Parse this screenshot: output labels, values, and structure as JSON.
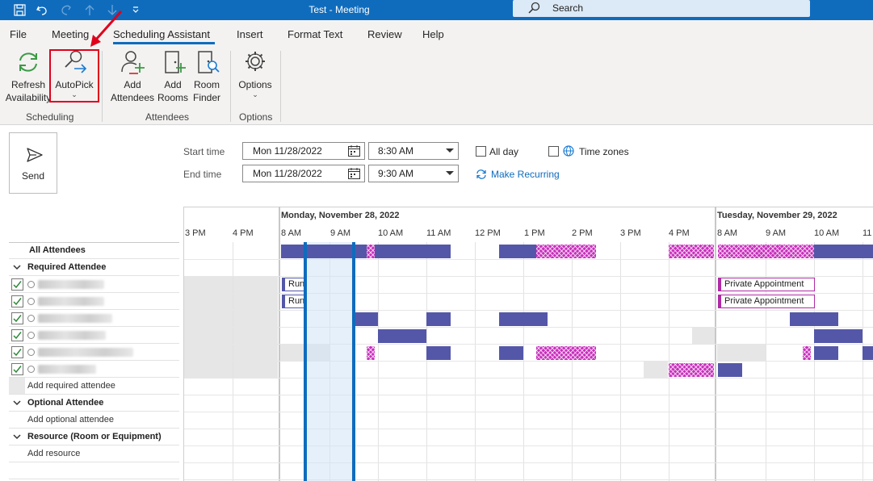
{
  "window": {
    "title": "Test  -  Meeting",
    "search_label": "Search"
  },
  "quick_access": [
    "save-icon",
    "undo-icon",
    "redo-icon",
    "up-arrow-icon",
    "down-arrow-icon",
    "customize-icon"
  ],
  "tabs": [
    {
      "label": "File"
    },
    {
      "label": "Meeting"
    },
    {
      "label": "Scheduling Assistant"
    },
    {
      "label": "Insert"
    },
    {
      "label": "Format Text"
    },
    {
      "label": "Review"
    },
    {
      "label": "Help"
    }
  ],
  "ribbon": {
    "refresh": {
      "line1": "Refresh",
      "line2": "Availability"
    },
    "autopick": {
      "line1": "AutoPick"
    },
    "add_attendees": {
      "line1": "Add",
      "line2": "Attendees"
    },
    "add_rooms": {
      "line1": "Add",
      "line2": "Rooms"
    },
    "room_finder": {
      "line1": "Room",
      "line2": "Finder"
    },
    "options": {
      "line1": "Options"
    },
    "groups": {
      "scheduling": "Scheduling",
      "attendees": "Attendees",
      "options": "Options"
    }
  },
  "form": {
    "send": "Send",
    "start_label": "Start time",
    "end_label": "End time",
    "start_date": "Mon 11/28/2022",
    "start_time": "8:30 AM",
    "end_date": "Mon 11/28/2022",
    "end_time": "9:30 AM",
    "all_day": "All day",
    "time_zones": "Time zones",
    "make_recurring": "Make Recurring"
  },
  "schedule": {
    "days": [
      "Monday, November 28, 2022",
      "Tuesday, November 29, 2022"
    ],
    "hours": [
      "3 PM",
      "4 PM",
      "8 AM",
      "9 AM",
      "10 AM",
      "11 AM",
      "12 PM",
      "1 PM",
      "2 PM",
      "3 PM",
      "4 PM",
      "8 AM",
      "9 AM",
      "10 AM",
      "11"
    ],
    "appointments": {
      "run1": "Run",
      "run2": "Run",
      "private1": "Private Appointment",
      "private2": "Private Appointment"
    }
  },
  "attendees": {
    "all": "All Attendees",
    "required_header": "Required Attendee",
    "add_required": "Add required attendee",
    "optional_header": "Optional Attendee",
    "add_optional": "Add optional attendee",
    "resource_header": "Resource (Room or Equipment)",
    "add_resource": "Add resource"
  }
}
